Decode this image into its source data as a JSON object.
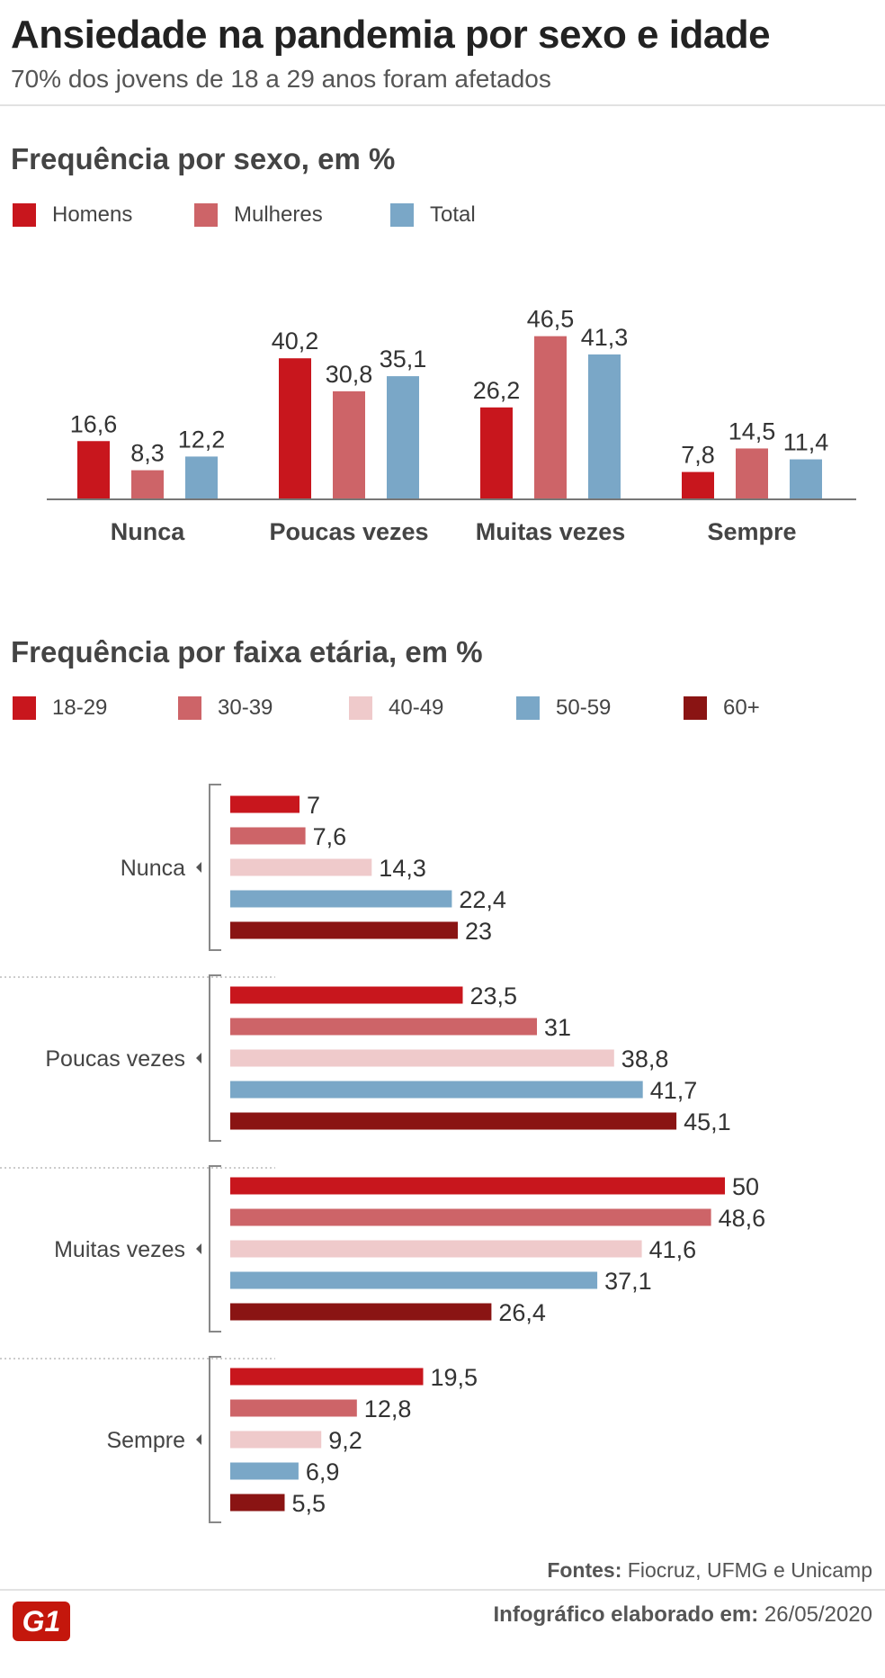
{
  "header": {
    "title": "Ansiedade na pandemia por sexo e idade",
    "subtitle": "70% dos jovens de 18 a 29 anos foram afetados"
  },
  "colors": {
    "homens": "#c8161d",
    "mulheres": "#cd6468",
    "total": "#7aa7c7",
    "age_18_29": "#c8161d",
    "age_30_39": "#cd6468",
    "age_40_49": "#efcacb",
    "age_50_59": "#7aa7c7",
    "age_60_plus": "#8a1413"
  },
  "chart_data": [
    {
      "type": "bar",
      "orientation": "vertical",
      "title": "Frequência por sexo, em %",
      "categories": [
        "Nunca",
        "Poucas vezes",
        "Muitas vezes",
        "Sempre"
      ],
      "series": [
        {
          "name": "Homens",
          "values": [
            16.6,
            40.2,
            26.2,
            7.8
          ],
          "labels": [
            "16,6",
            "40,2",
            "26,2",
            "7,8"
          ]
        },
        {
          "name": "Mulheres",
          "values": [
            8.3,
            30.8,
            46.5,
            14.5
          ],
          "labels": [
            "8,3",
            "30,8",
            "46,5",
            "14,5"
          ]
        },
        {
          "name": "Total",
          "values": [
            12.2,
            35.1,
            41.3,
            11.4
          ],
          "labels": [
            "12,2",
            "35,1",
            "41,3",
            "11,4"
          ]
        }
      ],
      "legend": "top-left",
      "grid": false
    },
    {
      "type": "bar",
      "orientation": "horizontal",
      "title": "Frequência por faixa etária, em %",
      "categories": [
        "Nunca",
        "Poucas vezes",
        "Muitas vezes",
        "Sempre"
      ],
      "series": [
        {
          "name": "18-29",
          "values": [
            7,
            23.5,
            50,
            19.5
          ],
          "labels": [
            "7",
            "23,5",
            "50",
            "19,5"
          ]
        },
        {
          "name": "30-39",
          "values": [
            7.6,
            31,
            48.6,
            12.8
          ],
          "labels": [
            "7,6",
            "31",
            "48,6",
            "12,8"
          ]
        },
        {
          "name": "40-49",
          "values": [
            14.3,
            38.8,
            41.6,
            9.2
          ],
          "labels": [
            "14,3",
            "38,8",
            "41,6",
            "9,2"
          ]
        },
        {
          "name": "50-59",
          "values": [
            22.4,
            41.7,
            37.1,
            6.9
          ],
          "labels": [
            "22,4",
            "41,7",
            "37,1",
            "6,9"
          ]
        },
        {
          "name": "60+",
          "values": [
            23,
            45.1,
            26.4,
            5.5
          ],
          "labels": [
            "23",
            "45,1",
            "26,4",
            "5,5"
          ]
        }
      ],
      "legend": "top-left",
      "grid": false
    }
  ],
  "footer": {
    "source_label": "Fontes:",
    "source_text": " Fiocruz, UFMG e Unicamp",
    "logo_text": "G1",
    "created_label": "Infográfico elaborado em:",
    "created_date": " 26/05/2020"
  }
}
